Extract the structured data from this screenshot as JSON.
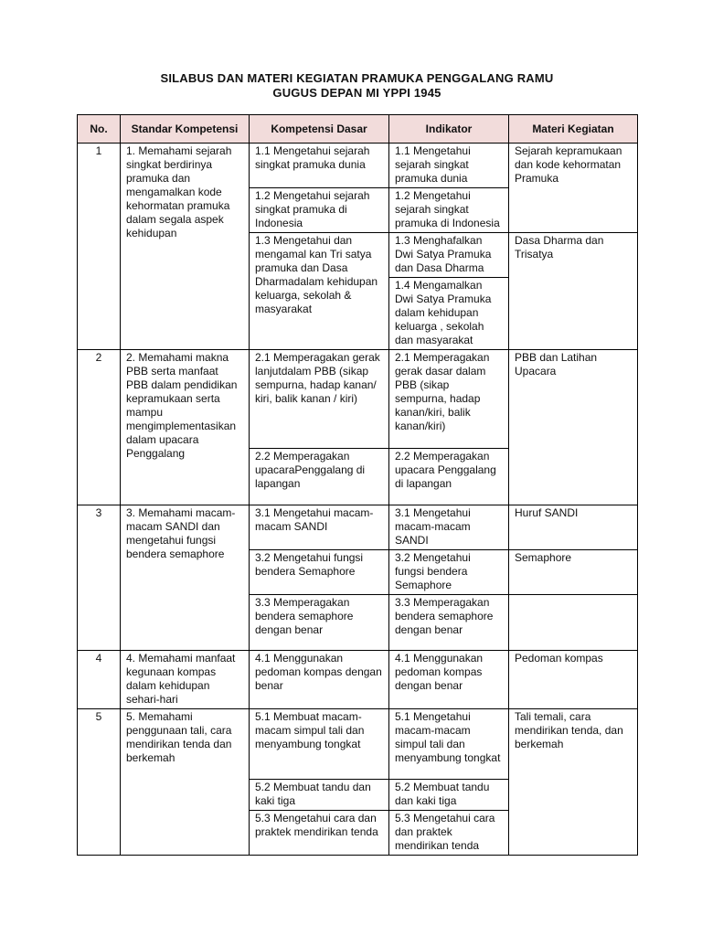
{
  "title": [
    "SILABUS DAN MATERI KEGIATAN PRAMUKA PENGGALANG RAMU",
    "GUGUS DEPAN MI YPPI 1945"
  ],
  "table": {
    "header": [
      "No.",
      "Standar Kompetensi",
      "Kompetensi Dasar",
      "Indikator",
      "Materi Kegiatan"
    ],
    "rows": [
      {
        "no": "1",
        "standar": "1. Memahami sejarah singkat berdirinya pramuka dan mengamalkan kode kehormatan pramuka dalam segala aspek kehidupan",
        "kompetensi": [
          "1.1 Mengetahui sejarah singkat pramuka dunia",
          "1.2 Mengetahui sejarah singkat pramuka di Indonesia",
          "1.3 Mengetahui dan mengamal kan Tri satya pramuka dan Dasa Dharmadalam kehidupan keluarga, sekolah & masyarakat"
        ],
        "indikator": [
          "1.1 Mengetahui sejarah singkat pramuka dunia",
          "1.2 Mengetahui sejarah singkat pramuka di Indonesia",
          "1.3 Menghafalkan Dwi Satya Pramuka dan Dasa Dharma",
          "1.4 Mengamalkan Dwi Satya Pramuka dalam kehidupan keluarga , sekolah dan masyarakat"
        ],
        "materi": [
          "Sejarah kepramukaan dan kode kehormatan Pramuka",
          "Dasa Dharma dan Trisatya"
        ]
      },
      {
        "no": "2",
        "standar": "2. Memahami makna PBB serta manfaat PBB dalam pendidikan kepramukaan serta mampu mengimplementasikan dalam upacara Penggalang",
        "kompetensi": [
          "2.1 Memperagakan gerak lanjutdalam PBB (sikap sempurna, hadap kanan/ kiri, balik kanan / kiri)",
          "2.2 Memperagakan upacaraPenggalang di lapangan"
        ],
        "indikator": [
          "2.1 Memperagakan gerak dasar dalam PBB (sikap sempurna, hadap kanan/kiri, balik kanan/kiri)",
          "2.2 Memperagakan upacara Penggalang di lapangan"
        ],
        "materi": [
          "PBB dan Latihan Upacara"
        ]
      },
      {
        "no": "3",
        "standar": "3. Memahami macam-macam SANDI dan mengetahui fungsi bendera semaphore",
        "kompetensi": [
          "3.1 Mengetahui macam-macam SANDI",
          "3.2 Mengetahui fungsi bendera Semaphore",
          "3.3 Memperagakan bendera semaphore dengan benar"
        ],
        "indikator": [
          "3.1 Mengetahui macam-macam SANDI",
          "3.2 Mengetahui fungsi bendera Semaphore",
          "3.3 Memperagakan bendera semaphore dengan benar"
        ],
        "materi": [
          "Huruf SANDI",
          "Semaphore"
        ]
      },
      {
        "no": "4",
        "standar": "4. Memahami manfaat kegunaan kompas dalam kehidupan sehari-hari",
        "kompetensi": [
          "4.1 Menggunakan pedoman kompas dengan benar"
        ],
        "indikator": [
          "4.1 Menggunakan pedoman kompas dengan benar"
        ],
        "materi": [
          "Pedoman kompas"
        ]
      },
      {
        "no": "5",
        "standar": "5. Memahami penggunaan tali, cara mendirikan tenda dan berkemah",
        "kompetensi": [
          "5.1 Membuat macam-macam simpul tali dan menyambung tongkat",
          "5.2 Membuat tandu dan kaki tiga",
          "5.3 Mengetahui cara dan praktek mendirikan tenda"
        ],
        "indikator": [
          "5.1 Mengetahui macam-macam simpul tali dan menyambung tongkat",
          "5.2 Membuat tandu dan kaki tiga",
          "5.3 Mengetahui cara dan praktek mendirikan tenda"
        ],
        "materi": [
          "Tali temali, cara mendirikan tenda, dan berkemah"
        ]
      }
    ]
  }
}
